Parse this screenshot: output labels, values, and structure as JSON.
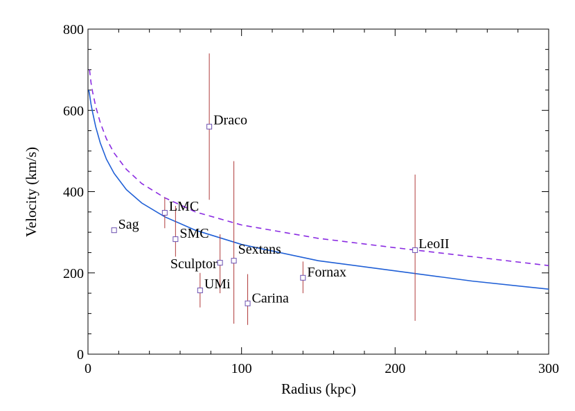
{
  "chart_data": {
    "type": "scatter",
    "xlabel": "Radius (kpc)",
    "ylabel": "Velocity (km/s)",
    "xlim": [
      0,
      300
    ],
    "ylim": [
      0,
      800
    ],
    "x_ticks": [
      0,
      100,
      200,
      300
    ],
    "y_ticks": [
      0,
      200,
      400,
      600,
      800
    ],
    "grid": false,
    "colors": {
      "solid_curve": "#1f5fd6",
      "dashed_curve": "#8a2be2",
      "error_bar": "#b03a3a",
      "marker": "#6a4fb0"
    },
    "points": [
      {
        "name": "Sag",
        "x": 17,
        "y": 305,
        "yerr_low": null,
        "yerr_high": null
      },
      {
        "name": "LMC",
        "x": 50,
        "y": 348,
        "yerr_low": 310,
        "yerr_high": 385
      },
      {
        "name": "SMC",
        "x": 57,
        "y": 283,
        "yerr_low": 240,
        "yerr_high": 365
      },
      {
        "name": "Draco",
        "x": 79,
        "y": 560,
        "yerr_low": 380,
        "yerr_high": 740
      },
      {
        "name": "Sculptor",
        "x": 86,
        "y": 225,
        "yerr_low": 150,
        "yerr_high": 295
      },
      {
        "name": "UMi",
        "x": 73,
        "y": 157,
        "yerr_low": 115,
        "yerr_high": 200
      },
      {
        "name": "Sextans",
        "x": 95,
        "y": 230,
        "yerr_low": 75,
        "yerr_high": 475
      },
      {
        "name": "Carina",
        "x": 104,
        "y": 125,
        "yerr_low": 72,
        "yerr_high": 197
      },
      {
        "name": "Fornax",
        "x": 140,
        "y": 188,
        "yerr_low": 150,
        "yerr_high": 228
      },
      {
        "name": "LeoII",
        "x": 213,
        "y": 256,
        "yerr_low": 82,
        "yerr_high": 442
      }
    ],
    "curves": [
      {
        "style": "solid",
        "x": [
          0.5,
          1,
          2,
          3,
          5,
          8,
          12,
          17,
          25,
          35,
          50,
          70,
          100,
          150,
          200,
          250,
          300
        ],
        "y": [
          650,
          640,
          615,
          595,
          560,
          520,
          480,
          445,
          405,
          372,
          338,
          305,
          270,
          230,
          205,
          180,
          160
        ]
      },
      {
        "style": "dashed",
        "x": [
          1,
          2,
          3,
          5,
          8,
          12,
          17,
          25,
          35,
          50,
          70,
          100,
          150,
          200,
          250,
          300
        ],
        "y": [
          700,
          668,
          645,
          610,
          570,
          530,
          495,
          455,
          420,
          385,
          350,
          318,
          285,
          262,
          240,
          218
        ]
      }
    ]
  }
}
